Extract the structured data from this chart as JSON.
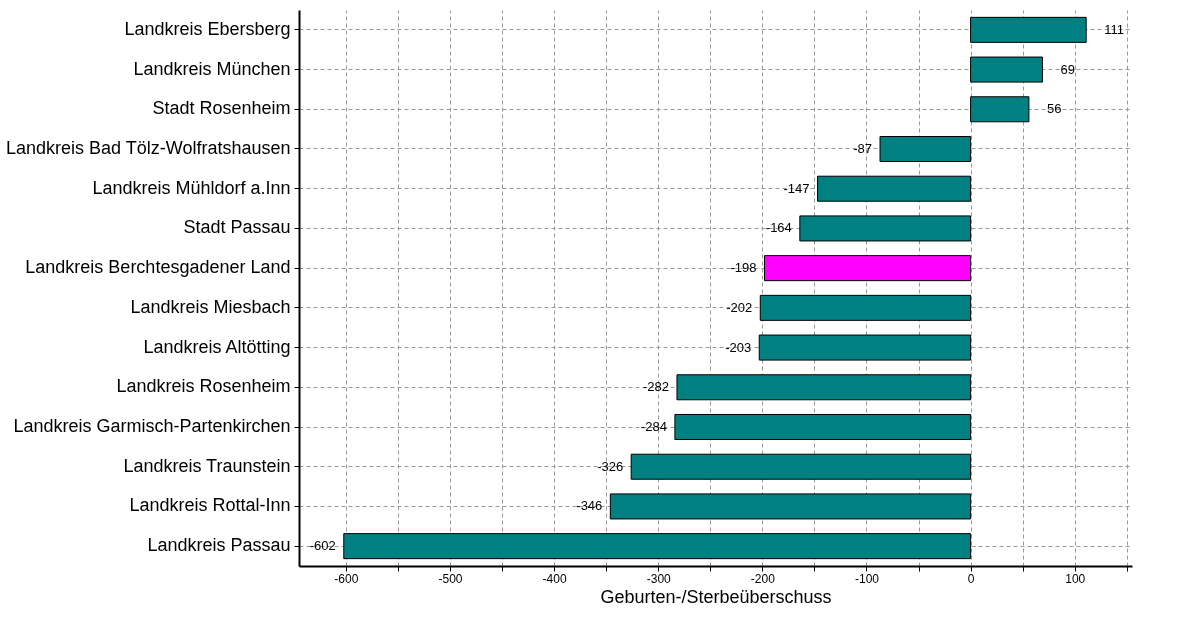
{
  "chart_data": {
    "type": "bar",
    "orientation": "horizontal",
    "xlabel": "Geburten-/Sterbeüberschuss",
    "categories": [
      "Landkreis Ebersberg",
      "Landkreis München",
      "Stadt Rosenheim",
      "Landkreis Bad Tölz-Wolfratshausen",
      "Landkreis Mühldorf a.Inn",
      "Stadt Passau",
      "Landkreis Berchtesgadener Land",
      "Landkreis Miesbach",
      "Landkreis Altötting",
      "Landkreis Rosenheim",
      "Landkreis Garmisch-Partenkirchen",
      "Landkreis Traunstein",
      "Landkreis Rottal-Inn",
      "Landkreis Passau"
    ],
    "values": [
      111,
      69,
      56,
      -87,
      -147,
      -164,
      -198,
      -202,
      -203,
      -282,
      -284,
      -326,
      -346,
      -602
    ],
    "colors": [
      "#008080",
      "#008080",
      "#008080",
      "#008080",
      "#008080",
      "#008080",
      "#ff00ff",
      "#008080",
      "#008080",
      "#008080",
      "#008080",
      "#008080",
      "#008080",
      "#008080"
    ],
    "xlim": [
      -645,
      155
    ],
    "xticks": [
      -600,
      {
        "value": -550,
        "label": null
      },
      -500,
      {
        "value": -450,
        "label": null
      },
      -400,
      {
        "value": -350,
        "label": null
      },
      -300,
      {
        "value": -250,
        "label": null
      },
      -200,
      {
        "value": -150,
        "label": null
      },
      -100,
      {
        "value": -50,
        "label": null
      },
      0,
      {
        "value": 50,
        "label": null
      },
      100,
      {
        "value": 150,
        "label": null
      }
    ],
    "grid": true,
    "data_labels": true
  }
}
